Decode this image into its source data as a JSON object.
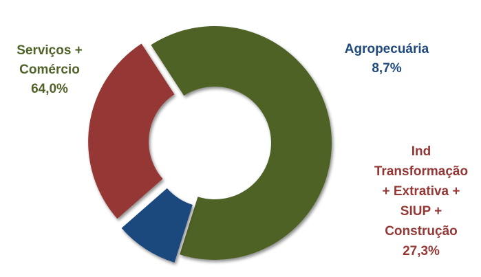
{
  "chart_data": {
    "type": "pie",
    "variant": "donut",
    "title": "",
    "legend": "none",
    "series": [
      {
        "name_lines": [
          "Serviços +",
          "Comércio"
        ],
        "value": 64.0,
        "value_label": "64,0%",
        "color": "#4f6228"
      },
      {
        "name_lines": [
          "Agropecuária"
        ],
        "value": 8.7,
        "value_label": "8,7%",
        "color": "#1f497d"
      },
      {
        "name_lines": [
          "Ind",
          "Transformação",
          "+ Extrativa +",
          "SIUP +",
          "Construção"
        ],
        "value": 27.3,
        "value_label": "27,3%",
        "color": "#953735"
      }
    ]
  }
}
